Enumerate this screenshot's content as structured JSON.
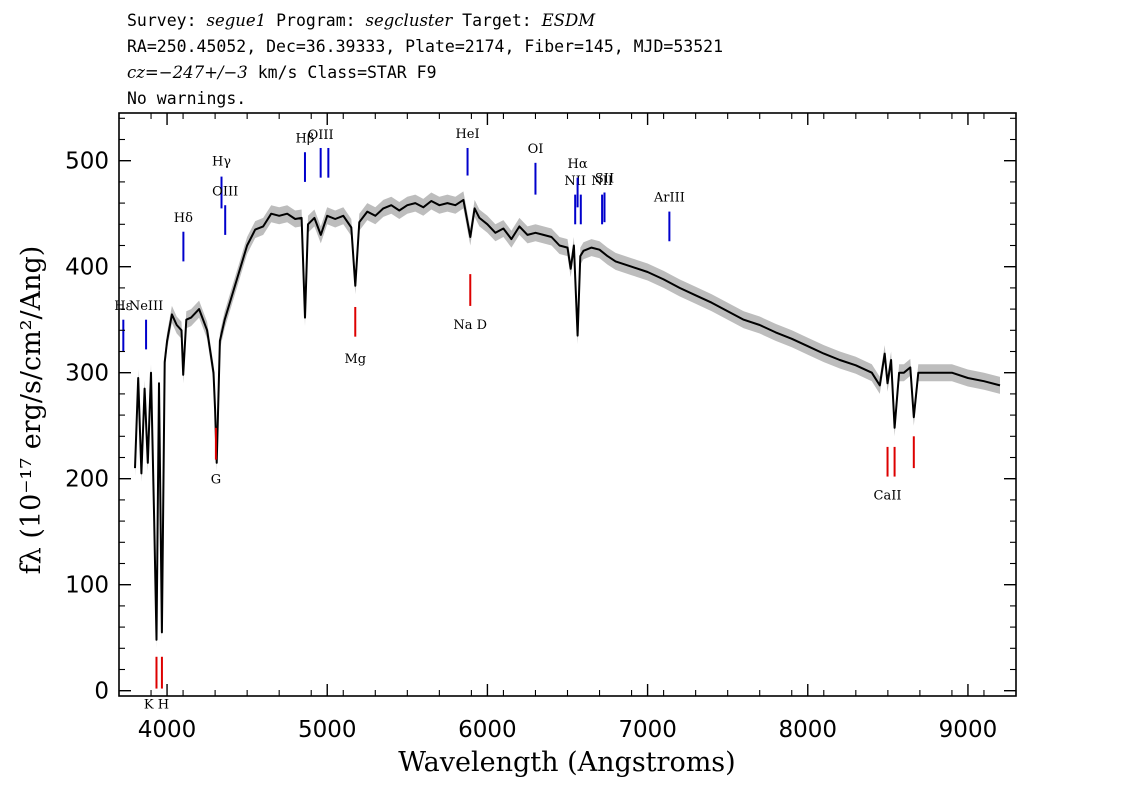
{
  "header": {
    "line1": {
      "k1": "Survey: ",
      "v1": "segue1",
      "k2": " Program: ",
      "v2": "segcluster",
      "k3": " Target: ",
      "v3": "ESDM"
    },
    "line2": "RA=250.45052, Dec=36.39333, Plate=2174, Fiber=145, MJD=53521",
    "line3": {
      "v": "cz=−247+/−3",
      "rest": " km/s Class=STAR F9"
    },
    "line4": "No warnings."
  },
  "chart_data": {
    "type": "line",
    "xlabel": "Wavelength (Angstroms)",
    "ylabel": "fλ (10⁻¹⁷ erg/s/cm²/Ang)",
    "xlim": [
      3700,
      9300
    ],
    "ylim": [
      -5,
      545
    ],
    "xticks": [
      4000,
      5000,
      6000,
      7000,
      8000,
      9000
    ],
    "yticks": [
      0,
      100,
      200,
      300,
      400,
      500
    ],
    "colors": {
      "spectrum": "#000000",
      "error_band": "#bdbdbd",
      "emission": "#0000cc",
      "absorption": "#dd0000"
    },
    "series": [
      {
        "x": [
          3800,
          3820,
          3840,
          3860,
          3880,
          3900,
          3920,
          3934,
          3950,
          3968,
          3985,
          4000,
          4030,
          4060,
          4090,
          4101,
          4120,
          4150,
          4200,
          4250,
          4290,
          4300,
          4310,
          4330,
          4360,
          4400,
          4450,
          4500,
          4550,
          4600,
          4650,
          4700,
          4750,
          4800,
          4840,
          4861,
          4880,
          4920,
          4960,
          5000,
          5050,
          5100,
          5150,
          5175,
          5200,
          5250,
          5300,
          5350,
          5400,
          5450,
          5500,
          5550,
          5600,
          5650,
          5700,
          5750,
          5800,
          5850,
          5893,
          5920,
          5950,
          6000,
          6050,
          6100,
          6150,
          6200,
          6250,
          6300,
          6350,
          6400,
          6450,
          6500,
          6520,
          6540,
          6563,
          6580,
          6600,
          6650,
          6700,
          6750,
          6800,
          6900,
          7000,
          7100,
          7200,
          7300,
          7400,
          7500,
          7600,
          7700,
          7800,
          7900,
          8000,
          8100,
          8200,
          8300,
          8400,
          8450,
          8480,
          8498,
          8520,
          8542,
          8570,
          8600,
          8640,
          8662,
          8690,
          8720,
          8800,
          8900,
          9000,
          9100,
          9200
        ],
        "y": [
          210,
          295,
          205,
          285,
          215,
          300,
          160,
          48,
          290,
          55,
          310,
          330,
          355,
          345,
          340,
          298,
          350,
          352,
          360,
          340,
          300,
          265,
          215,
          330,
          350,
          370,
          395,
          420,
          435,
          438,
          450,
          448,
          450,
          445,
          446,
          352,
          440,
          446,
          430,
          448,
          445,
          448,
          437,
          382,
          442,
          452,
          448,
          455,
          458,
          453,
          458,
          460,
          456,
          462,
          458,
          460,
          458,
          463,
          428,
          455,
          446,
          440,
          432,
          436,
          426,
          438,
          430,
          432,
          430,
          428,
          420,
          418,
          398,
          420,
          335,
          410,
          415,
          418,
          416,
          410,
          405,
          400,
          395,
          388,
          380,
          373,
          366,
          358,
          350,
          345,
          338,
          332,
          325,
          318,
          312,
          307,
          300,
          288,
          318,
          290,
          312,
          248,
          300,
          300,
          305,
          258,
          300,
          300,
          300,
          300,
          295,
          292,
          288
        ]
      }
    ],
    "emission_lines": [
      {
        "label": "Hε",
        "x": 3727,
        "top": 350,
        "bottom": 320,
        "label_y": 364
      },
      {
        "label": "NeIII",
        "x": 3869,
        "top": 350,
        "bottom": 322,
        "label_y": 364
      },
      {
        "label": "Hδ",
        "x": 4102,
        "top": 433,
        "bottom": 405,
        "label_y": 447
      },
      {
        "label": "Hγ",
        "x": 4340,
        "top": 485,
        "bottom": 455,
        "label_y": 500
      },
      {
        "label": "OIII",
        "x": 4363,
        "top": 458,
        "bottom": 430,
        "label_y": 472
      },
      {
        "label": "Hβ",
        "x": 4861,
        "top": 508,
        "bottom": 480,
        "label_y": 522
      },
      {
        "label": "OIII",
        "x": 4959,
        "top": 512,
        "bottom": 484,
        "label_y": 525
      },
      {
        "label": "",
        "x": 5007,
        "top": 512,
        "bottom": 484
      },
      {
        "label": "HeI",
        "x": 5876,
        "top": 512,
        "bottom": 486,
        "label_y": 526
      },
      {
        "label": "OI",
        "x": 6300,
        "top": 498,
        "bottom": 468,
        "label_y": 512
      },
      {
        "label": "NII",
        "x": 6548,
        "top": 468,
        "bottom": 440,
        "label_y": 482
      },
      {
        "label": "Hα",
        "x": 6563,
        "top": 484,
        "bottom": 456,
        "label_y": 498
      },
      {
        "label": "",
        "x": 6583,
        "top": 468,
        "bottom": 440
      },
      {
        "label": "NII",
        "x": 6716,
        "top": 468,
        "bottom": 440,
        "label_y": 482
      },
      {
        "label": "SII",
        "x": 6731,
        "top": 470,
        "bottom": 442,
        "label_y": 484
      },
      {
        "label": "ArIII",
        "x": 7136,
        "top": 452,
        "bottom": 424,
        "label_y": 466
      }
    ],
    "absorption_lines": [
      {
        "label": "K H",
        "x": 3934,
        "top": 32,
        "bottom": 2,
        "label_y": -12
      },
      {
        "label": "",
        "x": 3968,
        "top": 32,
        "bottom": 2
      },
      {
        "label": "G",
        "x": 4305,
        "top": 248,
        "bottom": 218,
        "label_y": 200
      },
      {
        "label": "Mg",
        "x": 5175,
        "top": 362,
        "bottom": 334,
        "label_y": 314
      },
      {
        "label": "Na D",
        "x": 5893,
        "top": 393,
        "bottom": 363,
        "label_y": 346
      },
      {
        "label": "CaII",
        "x": 8498,
        "top": 230,
        "bottom": 202,
        "label_y": 185
      },
      {
        "label": "",
        "x": 8542,
        "top": 230,
        "bottom": 202
      },
      {
        "label": "",
        "x": 8662,
        "top": 240,
        "bottom": 210
      }
    ]
  }
}
